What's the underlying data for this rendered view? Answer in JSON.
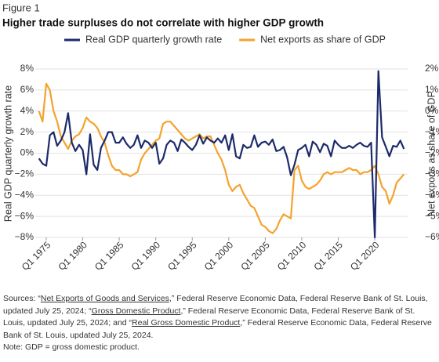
{
  "chart_data": {
    "type": "line",
    "figure_label": "Figure 1",
    "title": "Higher trade surpluses do not correlate with higher GDP growth",
    "ylabel": "Real GDP quarterly growth rate",
    "y2label": "Net exports as share of GDP",
    "x": [
      1974,
      1974.5,
      1975,
      1975.5,
      1976,
      1976.5,
      1977,
      1977.5,
      1978,
      1978.5,
      1979,
      1979.5,
      1980,
      1980.5,
      1981,
      1981.5,
      1982,
      1982.5,
      1983,
      1983.5,
      1984,
      1984.5,
      1985,
      1985.5,
      1986,
      1986.5,
      1987,
      1987.5,
      1988,
      1988.5,
      1989,
      1989.5,
      1990,
      1990.5,
      1991,
      1991.5,
      1992,
      1992.5,
      1993,
      1993.5,
      1994,
      1994.5,
      1995,
      1995.5,
      1996,
      1996.5,
      1997,
      1997.5,
      1998,
      1998.5,
      1999,
      1999.5,
      2000,
      2000.5,
      2001,
      2001.5,
      2002,
      2002.5,
      2003,
      2003.5,
      2004,
      2004.5,
      2005,
      2005.5,
      2006,
      2006.5,
      2007,
      2007.5,
      2008,
      2008.5,
      2009,
      2009.5,
      2010,
      2010.5,
      2011,
      2011.5,
      2012,
      2012.5,
      2013,
      2013.5,
      2014,
      2014.5,
      2015,
      2015.5,
      2016,
      2016.5,
      2017,
      2017.5,
      2018,
      2018.5,
      2019,
      2019.5,
      2020,
      2020.5,
      2021,
      2021.5,
      2022,
      2022.5,
      2023,
      2023.5,
      2024
    ],
    "series": [
      {
        "name": "Real GDP quarterly growth rate",
        "color": "#1c2a6b",
        "axis": "y",
        "values": [
          -0.5,
          -1.0,
          -1.2,
          1.7,
          2.0,
          0.7,
          1.2,
          2.0,
          3.8,
          1.0,
          0.2,
          0.8,
          0.3,
          -2.0,
          1.8,
          -1.1,
          -1.6,
          0.5,
          1.2,
          2.0,
          2.0,
          1.0,
          1.0,
          1.5,
          0.9,
          0.5,
          0.8,
          1.7,
          0.5,
          1.2,
          1.0,
          0.5,
          1.0,
          -1.0,
          -0.5,
          0.8,
          1.2,
          1.0,
          0.2,
          1.3,
          1.0,
          0.6,
          0.3,
          0.8,
          1.7,
          0.9,
          1.5,
          1.2,
          1.0,
          1.4,
          1.0,
          1.7,
          0.3,
          1.8,
          -0.3,
          -0.5,
          0.8,
          0.5,
          0.6,
          1.7,
          0.6,
          1.0,
          1.1,
          0.8,
          1.3,
          0.2,
          0.3,
          0.6,
          -0.4,
          -2.1,
          -1.1,
          0.3,
          0.5,
          0.8,
          -0.3,
          1.1,
          0.8,
          0.1,
          0.9,
          0.7,
          -0.3,
          1.2,
          0.8,
          0.5,
          0.5,
          0.7,
          0.5,
          0.8,
          1.0,
          0.7,
          0.6,
          1.0,
          -8.0,
          7.8,
          1.5,
          0.6,
          -0.3,
          0.7,
          0.6,
          1.2,
          0.4
        ]
      },
      {
        "name": "Net exports as share of GDP",
        "color": "#f5a22c",
        "axis": "y2",
        "values": [
          0,
          -0.5,
          1.3,
          1.0,
          0.0,
          -0.5,
          -1.2,
          -1.5,
          -1.8,
          -1.4,
          -1.2,
          -1.1,
          -0.8,
          -0.3,
          -0.5,
          -0.6,
          -0.8,
          -1.2,
          -1.5,
          -2.1,
          -2.6,
          -2.8,
          -2.8,
          -3.0,
          -3.0,
          -3.1,
          -3.0,
          -2.9,
          -2.3,
          -2.0,
          -1.8,
          -1.6,
          -1.4,
          -1.3,
          -0.6,
          -0.5,
          -0.5,
          -0.7,
          -0.9,
          -1.1,
          -1.3,
          -1.4,
          -1.3,
          -1.2,
          -1.1,
          -1.3,
          -1.2,
          -1.2,
          -1.6,
          -2.0,
          -2.3,
          -2.8,
          -3.5,
          -3.8,
          -3.6,
          -3.5,
          -3.9,
          -4.2,
          -4.5,
          -4.6,
          -5.0,
          -5.4,
          -5.5,
          -5.7,
          -5.8,
          -5.6,
          -5.2,
          -4.9,
          -5.0,
          -5.1,
          -2.8,
          -2.6,
          -3.3,
          -3.6,
          -3.7,
          -3.6,
          -3.5,
          -3.3,
          -3.0,
          -2.9,
          -3.0,
          -2.9,
          -2.9,
          -2.9,
          -2.8,
          -2.7,
          -2.8,
          -2.8,
          -3.0,
          -2.9,
          -2.9,
          -2.8,
          -2.6,
          -3.0,
          -3.6,
          -3.8,
          -4.4,
          -4.0,
          -3.4,
          -3.2,
          -3.0
        ]
      }
    ],
    "xlim": [
      1973.5,
      2024.5
    ],
    "xticks": [
      {
        "value": 1975,
        "label": "Q1 1975"
      },
      {
        "value": 1980,
        "label": "Q1 1980"
      },
      {
        "value": 1985,
        "label": "Q1 1985"
      },
      {
        "value": 1990,
        "label": "Q1 1990"
      },
      {
        "value": 1995,
        "label": "Q1 1995"
      },
      {
        "value": 2000,
        "label": "Q1 2000"
      },
      {
        "value": 2005,
        "label": "Q1 2005"
      },
      {
        "value": 2010,
        "label": "Q1 2010"
      },
      {
        "value": 2015,
        "label": "Q1 2015"
      },
      {
        "value": 2020,
        "label": "Q1 2020"
      }
    ],
    "ylim": [
      -8,
      8
    ],
    "yticks": [
      {
        "value": 8,
        "label": "8%"
      },
      {
        "value": 6,
        "label": "6%"
      },
      {
        "value": 4,
        "label": "4%"
      },
      {
        "value": 2,
        "label": "2%"
      },
      {
        "value": 0,
        "label": "0%"
      },
      {
        "value": -2,
        "label": "−2%"
      },
      {
        "value": -4,
        "label": "−4%"
      },
      {
        "value": -6,
        "label": "−6%"
      },
      {
        "value": -8,
        "label": "−8%"
      }
    ],
    "y2lim": [
      -6,
      2
    ],
    "y2ticks": [
      {
        "value": 2,
        "label": "2%"
      },
      {
        "value": 1,
        "label": "1%"
      },
      {
        "value": 0,
        "label": "0%"
      },
      {
        "value": -1,
        "label": "−1%"
      },
      {
        "value": -2,
        "label": "−2%"
      },
      {
        "value": -3,
        "label": "−3%"
      },
      {
        "value": -4,
        "label": "−4%"
      },
      {
        "value": -5,
        "label": "−5%"
      },
      {
        "value": -6,
        "label": "−6%"
      }
    ],
    "grid": true,
    "legend": "top"
  },
  "sources": [
    {
      "text": "Sources: “"
    },
    {
      "text": "Net Exports of Goods and Services",
      "link": true
    },
    {
      "text": ",” Federal Reserve Economic Data, Federal Reserve Bank of St. Louis, updated July 25, 2024; “"
    },
    {
      "text": "Gross Domestic Product",
      "link": true
    },
    {
      "text": ",” Federal Reserve Economic Data, Federal Reserve Bank of St. Louis, updated July 25, 2024; and “"
    },
    {
      "text": "Real Gross Domestic Product",
      "link": true
    },
    {
      "text": ",” Federal Reserve Economic Data, Federal Reserve Bank of St. Louis, updated July 25, 2024."
    }
  ],
  "note": "Note: GDP = gross domestic product."
}
